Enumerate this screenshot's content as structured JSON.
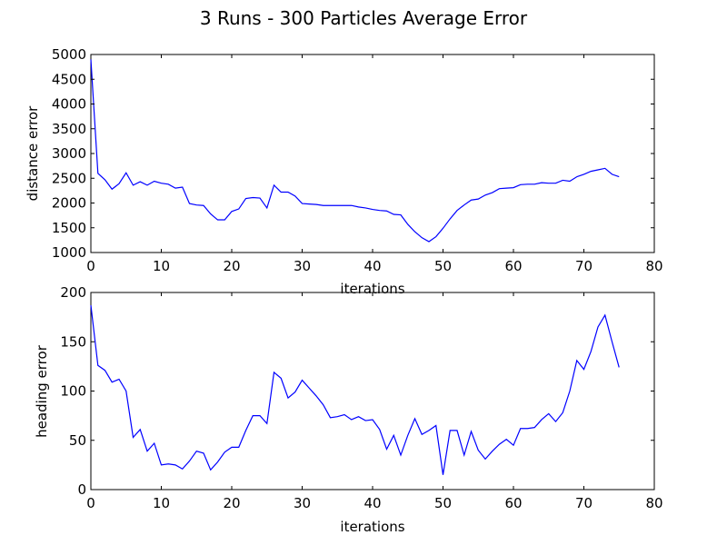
{
  "figure_title": "3 Runs - 300 Particles Average Error",
  "line_color": "#0000ff",
  "chart_data": [
    {
      "type": "line",
      "title": "",
      "xlabel": "iterations",
      "ylabel": "distance error",
      "xlim": [
        0,
        80
      ],
      "ylim": [
        1000,
        5000
      ],
      "xticks": [
        0,
        10,
        20,
        30,
        40,
        50,
        60,
        70,
        80
      ],
      "yticks": [
        1000,
        1500,
        2000,
        2500,
        3000,
        3500,
        4000,
        4500,
        5000
      ],
      "grid": false,
      "series": [
        {
          "x": [
            0,
            1,
            2,
            3,
            4,
            5,
            6,
            7,
            8,
            9,
            10,
            11,
            12,
            13,
            14,
            15,
            16,
            17,
            18,
            19,
            20,
            21,
            22,
            23,
            24,
            25,
            26,
            27,
            28,
            29,
            30,
            31,
            32,
            33,
            34,
            35,
            36,
            37,
            38,
            39,
            40,
            41,
            42,
            43,
            44,
            45,
            46,
            47,
            48,
            49,
            50,
            51,
            52,
            53,
            54,
            55,
            56,
            57,
            58,
            59,
            60,
            61,
            62,
            63,
            64,
            65,
            66,
            67,
            68,
            69,
            70,
            71,
            72,
            73,
            74,
            75
          ],
          "y": [
            4900,
            2600,
            2470,
            2280,
            2390,
            2610,
            2360,
            2430,
            2360,
            2440,
            2400,
            2380,
            2300,
            2320,
            1990,
            1960,
            1950,
            1780,
            1660,
            1660,
            1830,
            1880,
            2090,
            2110,
            2100,
            1900,
            2360,
            2220,
            2220,
            2140,
            1990,
            1980,
            1970,
            1950,
            1950,
            1950,
            1950,
            1950,
            1920,
            1900,
            1870,
            1850,
            1840,
            1770,
            1760,
            1570,
            1420,
            1300,
            1220,
            1320,
            1490,
            1680,
            1850,
            1960,
            2060,
            2080,
            2160,
            2210,
            2290,
            2300,
            2310,
            2370,
            2380,
            2380,
            2410,
            2400,
            2400,
            2460,
            2440,
            2530,
            2580,
            2640,
            2670,
            2700,
            2580,
            2530
          ]
        }
      ]
    },
    {
      "type": "line",
      "title": "",
      "xlabel": "iterations",
      "ylabel": "heading error",
      "xlim": [
        0,
        80
      ],
      "ylim": [
        0,
        200
      ],
      "xticks": [
        0,
        10,
        20,
        30,
        40,
        50,
        60,
        70,
        80
      ],
      "yticks": [
        0,
        50,
        100,
        150,
        200
      ],
      "grid": false,
      "series": [
        {
          "x": [
            0,
            1,
            2,
            3,
            4,
            5,
            6,
            7,
            8,
            9,
            10,
            11,
            12,
            13,
            14,
            15,
            16,
            17,
            18,
            19,
            20,
            21,
            22,
            23,
            24,
            25,
            26,
            27,
            28,
            29,
            30,
            31,
            32,
            33,
            34,
            35,
            36,
            37,
            38,
            39,
            40,
            41,
            42,
            43,
            44,
            45,
            46,
            47,
            48,
            49,
            50,
            51,
            52,
            53,
            54,
            55,
            56,
            57,
            58,
            59,
            60,
            61,
            62,
            63,
            64,
            65,
            66,
            67,
            68,
            69,
            70,
            71,
            72,
            73,
            74,
            75
          ],
          "y": [
            187,
            126,
            121,
            109,
            112,
            100,
            53,
            61,
            39,
            47,
            25,
            26,
            25,
            21,
            29,
            39,
            37,
            20,
            28,
            38,
            43,
            43,
            60,
            75,
            75,
            67,
            119,
            113,
            93,
            99,
            111,
            103,
            95,
            86,
            73,
            74,
            76,
            71,
            74,
            70,
            71,
            61,
            41,
            55,
            35,
            55,
            72,
            56,
            60,
            65,
            15,
            60,
            60,
            35,
            59,
            40,
            31,
            39,
            46,
            51,
            45,
            62,
            62,
            63,
            71,
            77,
            69,
            78,
            100,
            131,
            122,
            140,
            165,
            177,
            150,
            124
          ]
        }
      ]
    }
  ]
}
